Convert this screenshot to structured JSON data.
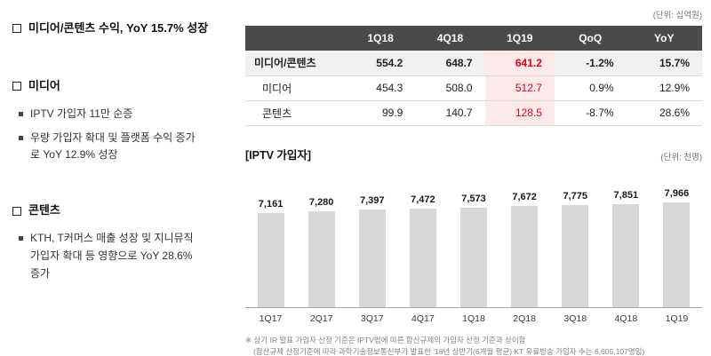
{
  "left_panel": {
    "sections": [
      {
        "title": "미디어/콘텐츠 수익, YoY 15.7% 성장",
        "bullets": []
      },
      {
        "title": "미디어",
        "bullets": [
          "IPTV 가입자 11만 순증",
          "우량 가입자 확대 및 플랫폼 수익 증가로 YoY 12.9% 성장"
        ]
      },
      {
        "title": "콘텐츠",
        "bullets": [
          "KTH, T커머스 매출 성장 및 지니뮤직 가입자 확대 등 영향으로 YoY 28.6% 증가"
        ]
      }
    ]
  },
  "table": {
    "unit_label": "(단위: 십억원)",
    "headers": [
      "",
      "1Q18",
      "4Q18",
      "1Q19",
      "QoQ",
      "YoY"
    ],
    "rows": [
      {
        "label": "미디어/콘텐츠",
        "values": [
          "554.2",
          "648.7",
          "641.2",
          "-1.2%",
          "15.7%"
        ]
      },
      {
        "label": "미디어",
        "values": [
          "454.3",
          "508.0",
          "512.7",
          "0.9%",
          "12.9%"
        ]
      },
      {
        "label": "콘텐츠",
        "values": [
          "99.9",
          "140.7",
          "128.5",
          "-8.7%",
          "28.6%"
        ]
      }
    ]
  },
  "chart_data": {
    "type": "bar",
    "title": "[IPTV 가입자]",
    "unit_label": "(단위: 천명)",
    "categories": [
      "1Q17",
      "2Q17",
      "3Q17",
      "4Q17",
      "1Q18",
      "2Q18",
      "3Q18",
      "4Q18",
      "1Q19"
    ],
    "values": [
      7161,
      7280,
      7397,
      7472,
      7573,
      7672,
      7775,
      7851,
      7966
    ],
    "value_labels": [
      "7,161",
      "7,280",
      "7,397",
      "7,472",
      "7,573",
      "7,672",
      "7,775",
      "7,851",
      "7,966"
    ],
    "ylabel": "천명",
    "ylim": [
      0,
      8200
    ],
    "grid": false,
    "legend": "none",
    "bar_color": "#d8d8d8"
  },
  "footnotes": [
    "※ 상기 IR 발표 가입자 산정 기준은 IPTV법에 따른 합산규제의 가입자 산정 기준과 상이함",
    "(합산규제 산정기준에 따라 과학기술정보통신부가 발표한 '18년 상반기(6개월 평균) KT 유료방송 가입자 수는 6,605,107명임)"
  ],
  "colors": {
    "accent_red": "#e60012",
    "header_bg": "#4a4a4a",
    "highlight_bg": "#fceaea",
    "total_row_bg": "#f1f1f1",
    "bar": "#d8d8d8"
  }
}
